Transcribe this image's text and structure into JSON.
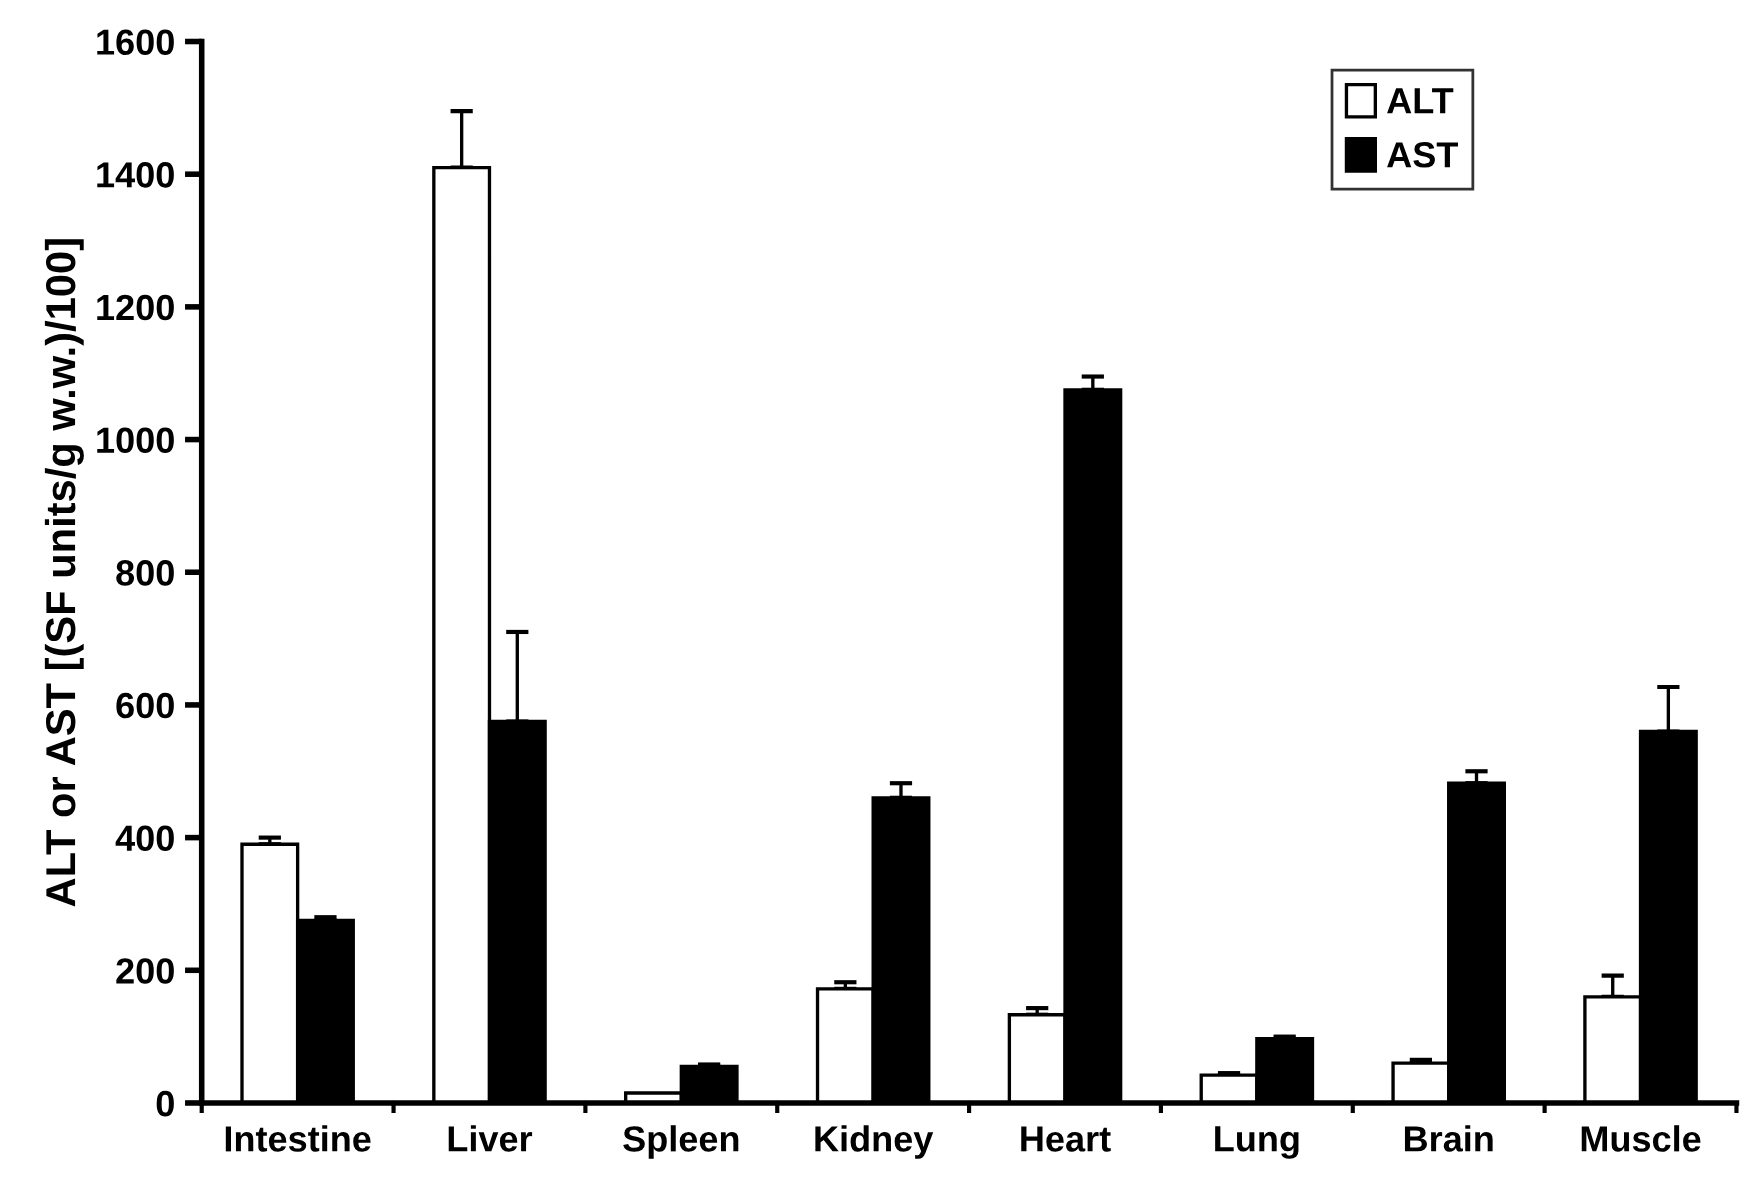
{
  "chart_data": {
    "type": "bar",
    "ylabel": "ALT or AST [(SF units/g w.w.)/100]",
    "categories": [
      "Intestine",
      "Liver",
      "Spleen",
      "Kidney",
      "Heart",
      "Lung",
      "Brain",
      "Muscle"
    ],
    "series": [
      {
        "name": "ALT",
        "color": "#ffffff",
        "values": [
          390,
          1410,
          15,
          172,
          133,
          42,
          60,
          160
        ],
        "errors": [
          [
            390,
            400
          ],
          [
            1410,
            1495
          ],
          null,
          [
            172,
            182
          ],
          [
            133,
            143
          ],
          [
            42,
            45
          ],
          [
            60,
            65
          ],
          [
            160,
            192
          ]
        ]
      },
      {
        "name": "AST",
        "color": "#000000",
        "values": [
          275,
          575,
          55,
          460,
          1075,
          97,
          482,
          560
        ],
        "errors": [
          [
            275,
            280
          ],
          [
            575,
            710
          ],
          [
            55,
            58
          ],
          [
            460,
            482
          ],
          [
            1075,
            1095
          ],
          [
            97,
            100
          ],
          [
            482,
            500
          ],
          [
            560,
            627
          ]
        ]
      }
    ],
    "ylim": [
      0,
      1600
    ],
    "yticks": [
      0,
      200,
      400,
      600,
      800,
      1000,
      1200,
      1400,
      1600
    ],
    "grid": false,
    "legend": "top right"
  }
}
